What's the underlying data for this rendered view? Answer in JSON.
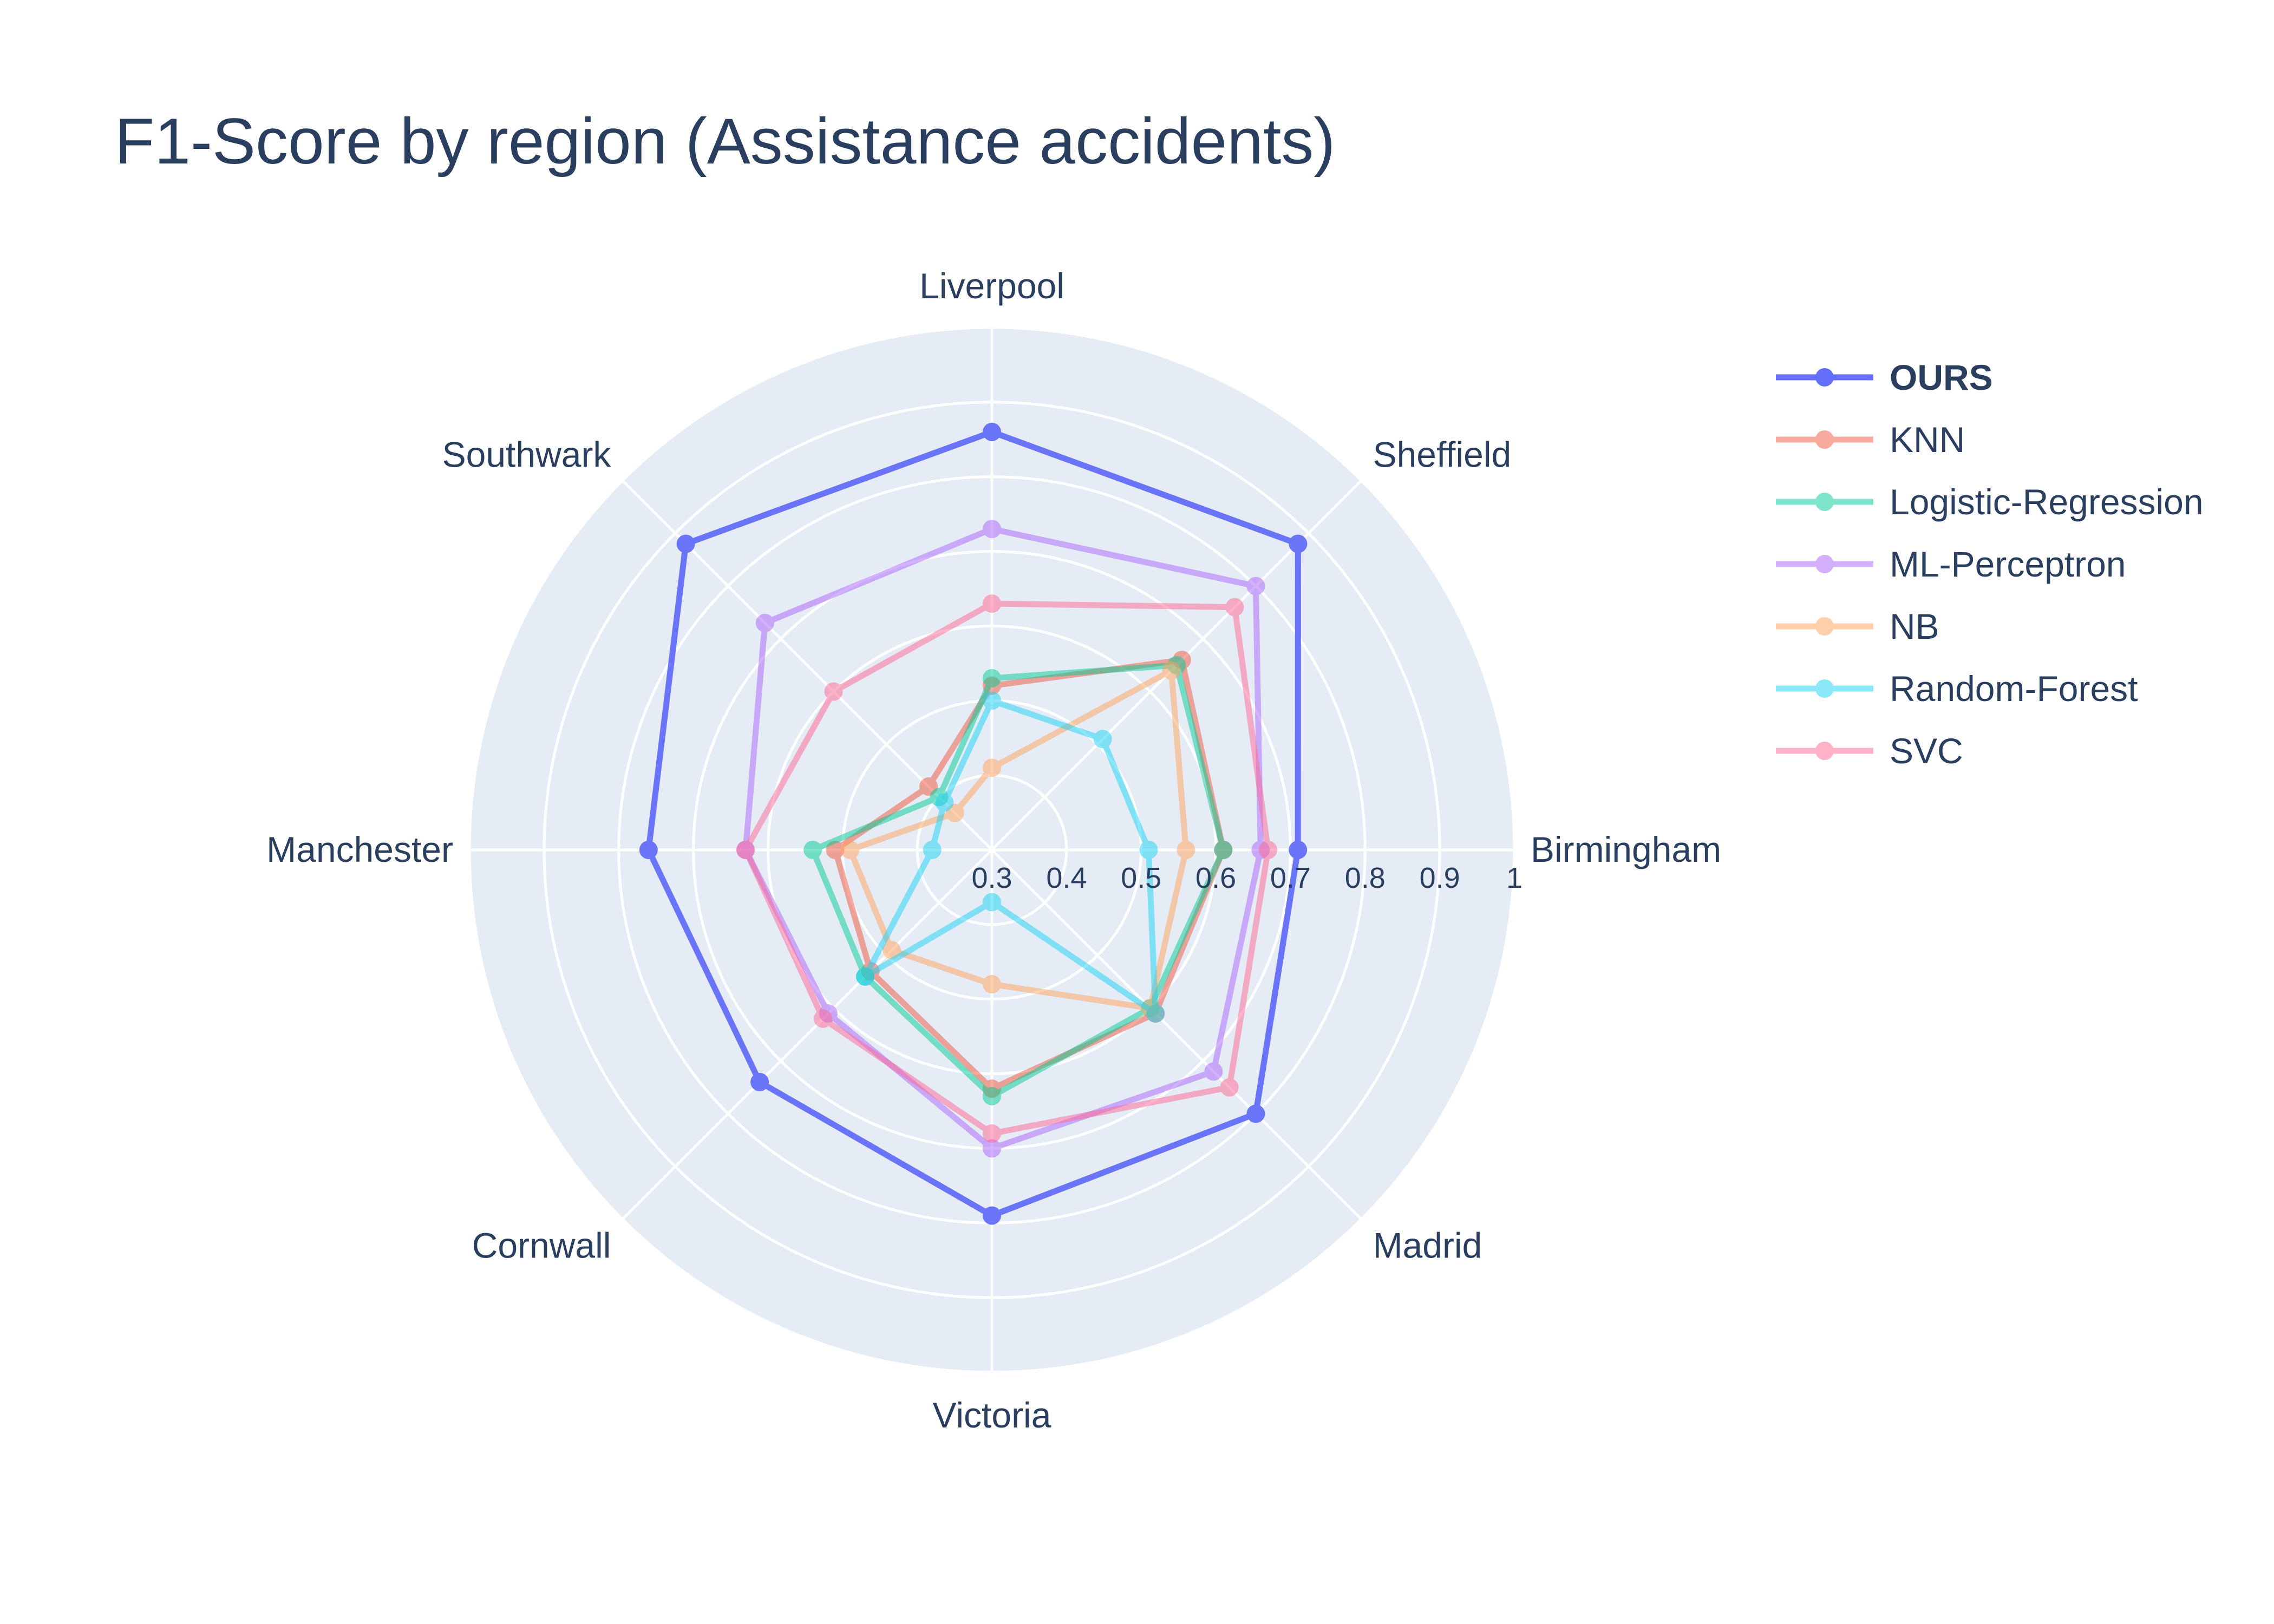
{
  "chart_data": {
    "type": "radar",
    "title": "F1-Score by region (Assistance accidents)",
    "categories": [
      "Birmingham",
      "Sheffield",
      "Liverpool",
      "Southwark",
      "Manchester",
      "Cornwall",
      "Victoria",
      "Madrid"
    ],
    "radial_range": [
      0.3,
      1
    ],
    "radial_ticks": [
      "0.3",
      "0.4",
      "0.5",
      "0.6",
      "0.7",
      "0.8",
      "0.9",
      "1"
    ],
    "radial_tick_values": [
      0.3,
      0.4,
      0.5,
      0.6,
      0.7,
      0.8,
      0.9,
      1.0
    ],
    "grid": true,
    "legend_position": "right",
    "series": [
      {
        "name": "OURS",
        "color": "#636efa",
        "emphasis": true,
        "values": [
          0.71,
          0.88,
          0.86,
          0.88,
          0.76,
          0.74,
          0.79,
          0.8
        ]
      },
      {
        "name": "KNN",
        "color": "#ef553b",
        "emphasis": false,
        "values": [
          0.61,
          0.66,
          0.52,
          0.42,
          0.51,
          0.53,
          0.62,
          0.61
        ]
      },
      {
        "name": "Logistic-Regression",
        "color": "#00cc96",
        "emphasis": false,
        "values": [
          0.61,
          0.65,
          0.53,
          0.4,
          0.54,
          0.54,
          0.63,
          0.6
        ]
      },
      {
        "name": "ML-Perceptron",
        "color": "#ab63fa",
        "emphasis": false,
        "values": [
          0.66,
          0.8,
          0.73,
          0.73,
          0.63,
          0.61,
          0.7,
          0.72
        ]
      },
      {
        "name": "NB",
        "color": "#ffa15a",
        "emphasis": false,
        "values": [
          0.56,
          0.64,
          0.41,
          0.37,
          0.49,
          0.49,
          0.48,
          0.6
        ]
      },
      {
        "name": "Random-Forest",
        "color": "#19d3f3",
        "emphasis": false,
        "values": [
          0.51,
          0.51,
          0.5,
          0.39,
          0.38,
          0.54,
          0.37,
          0.61
        ]
      },
      {
        "name": "SVC",
        "color": "#ff6692",
        "emphasis": false,
        "values": [
          0.67,
          0.76,
          0.63,
          0.6,
          0.63,
          0.62,
          0.68,
          0.75
        ]
      }
    ]
  }
}
